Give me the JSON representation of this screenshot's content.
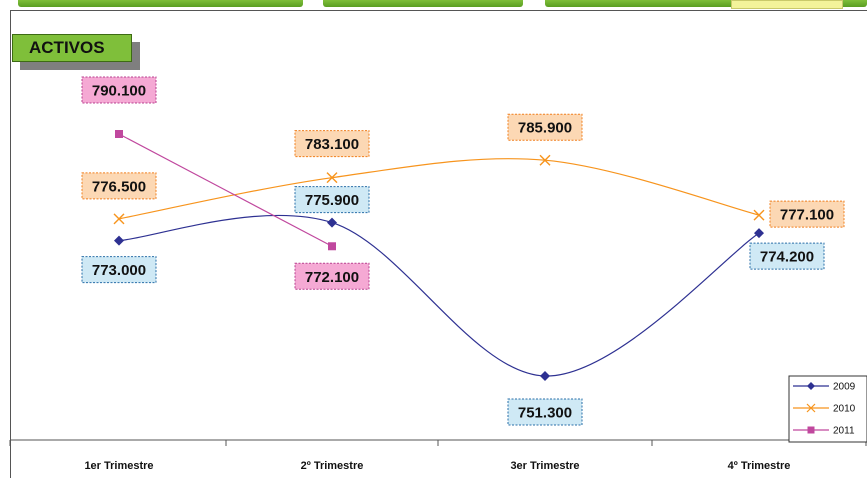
{
  "chart_data": {
    "type": "line",
    "title": "ACTIVOS",
    "categories": [
      "1er Trimestre",
      "2º Trimestre",
      "3er Trimestre",
      "4º Trimestre"
    ],
    "ylim": [
      740000,
      800000
    ],
    "smooth": true,
    "grid": false,
    "legend_position": "bottom-right",
    "series": [
      {
        "name": "2009",
        "values": [
          773000,
          775900,
          751300,
          774200
        ],
        "labels": [
          "773.000",
          "775.900",
          "751.300",
          "774.200"
        ],
        "color": "#2e3192",
        "marker": "diamond",
        "label_style": {
          "fill": "#cfe9f5",
          "border": "#2a6fa8"
        }
      },
      {
        "name": "2010",
        "values": [
          776500,
          783100,
          785900,
          777100
        ],
        "labels": [
          "776.500",
          "783.100",
          "785.900",
          "777.100"
        ],
        "color": "#f7941d",
        "marker": "x",
        "label_style": {
          "fill": "#fcd8b4",
          "border": "#f07f1e"
        }
      },
      {
        "name": "2011",
        "values": [
          790100,
          772100,
          null,
          null
        ],
        "labels": [
          "790.100",
          "772.100",
          null,
          null
        ],
        "color": "#c0489e",
        "marker": "square",
        "label_style": {
          "fill": "#f5a9d4",
          "border": "#b8408f"
        }
      }
    ]
  }
}
